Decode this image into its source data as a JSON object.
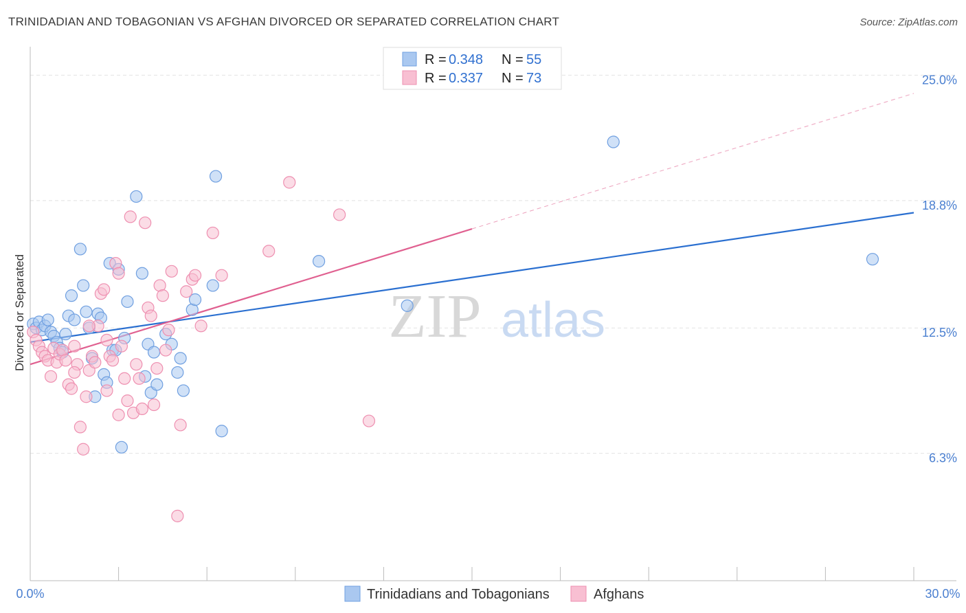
{
  "title": "TRINIDADIAN AND TOBAGONIAN VS AFGHAN DIVORCED OR SEPARATED CORRELATION CHART",
  "source": "Source: ZipAtlas.com",
  "watermark": {
    "zip": "ZIP",
    "atlas": "atlas"
  },
  "chart_data": {
    "type": "scatter",
    "ylabel": "Divorced or Separated",
    "xlim": [
      0,
      30
    ],
    "ylim": [
      0,
      26
    ],
    "x_tick_labels": [
      "0.0%",
      "30.0%"
    ],
    "y_ticks": [
      6.3,
      12.5,
      18.8,
      25.0
    ],
    "y_tick_labels": [
      "6.3%",
      "12.5%",
      "18.8%",
      "25.0%"
    ],
    "grid": "horizontal dashed",
    "legend_placement": "top-center",
    "series": [
      {
        "name": "Trinidadians and Tobagonians",
        "color": "#6f9fe0",
        "fill": "#aac8f0",
        "line_color": "#2a6fd0",
        "R": "0.348",
        "N": "55",
        "r_label": "R =",
        "n_label": "N =",
        "trend": {
          "x": [
            0,
            30
          ],
          "y": [
            11.8,
            18.2
          ]
        },
        "points": [
          [
            0.1,
            12.7
          ],
          [
            0.2,
            12.5
          ],
          [
            0.3,
            12.8
          ],
          [
            0.4,
            12.4
          ],
          [
            0.5,
            12.6
          ],
          [
            0.6,
            12.9
          ],
          [
            0.7,
            12.3
          ],
          [
            0.8,
            12.1
          ],
          [
            0.9,
            11.8
          ],
          [
            1.0,
            11.5
          ],
          [
            1.1,
            11.3
          ],
          [
            1.2,
            12.2
          ],
          [
            1.3,
            13.1
          ],
          [
            1.4,
            14.1
          ],
          [
            1.5,
            12.9
          ],
          [
            1.7,
            16.4
          ],
          [
            1.8,
            14.6
          ],
          [
            1.9,
            13.3
          ],
          [
            2.0,
            12.5
          ],
          [
            2.1,
            11.0
          ],
          [
            2.2,
            9.1
          ],
          [
            2.3,
            13.2
          ],
          [
            2.4,
            13.0
          ],
          [
            2.5,
            10.2
          ],
          [
            2.6,
            9.8
          ],
          [
            2.7,
            15.7
          ],
          [
            2.8,
            11.4
          ],
          [
            2.9,
            11.4
          ],
          [
            3.0,
            15.4
          ],
          [
            3.1,
            6.6
          ],
          [
            3.2,
            12.0
          ],
          [
            3.3,
            13.8
          ],
          [
            3.6,
            19.0
          ],
          [
            3.8,
            15.2
          ],
          [
            3.9,
            10.1
          ],
          [
            4.0,
            11.7
          ],
          [
            4.1,
            9.3
          ],
          [
            4.2,
            11.3
          ],
          [
            4.3,
            9.7
          ],
          [
            4.6,
            12.2
          ],
          [
            4.8,
            11.7
          ],
          [
            5.0,
            10.3
          ],
          [
            5.1,
            11.0
          ],
          [
            5.2,
            9.4
          ],
          [
            5.5,
            13.4
          ],
          [
            5.6,
            13.9
          ],
          [
            6.2,
            14.6
          ],
          [
            6.3,
            20.0
          ],
          [
            6.5,
            7.4
          ],
          [
            9.8,
            15.8
          ],
          [
            12.8,
            13.6
          ],
          [
            19.8,
            21.7
          ],
          [
            28.6,
            15.9
          ]
        ]
      },
      {
        "name": "Afghans",
        "color": "#ee8fb0",
        "fill": "#f8bfd2",
        "line_color": "#e06090",
        "R": "0.337",
        "N": "73",
        "r_label": "R =",
        "n_label": "N =",
        "trend": {
          "x": [
            0,
            15
          ],
          "y": [
            10.7,
            17.4
          ]
        },
        "trend_ext": {
          "x": [
            15,
            30
          ],
          "y": [
            17.4,
            24.1
          ]
        },
        "points": [
          [
            0.1,
            12.3
          ],
          [
            0.2,
            11.9
          ],
          [
            0.3,
            11.6
          ],
          [
            0.4,
            11.3
          ],
          [
            0.5,
            11.1
          ],
          [
            0.6,
            10.9
          ],
          [
            0.7,
            10.1
          ],
          [
            0.8,
            11.5
          ],
          [
            0.9,
            10.8
          ],
          [
            1.0,
            11.2
          ],
          [
            1.1,
            11.4
          ],
          [
            1.2,
            10.9
          ],
          [
            1.3,
            9.7
          ],
          [
            1.4,
            9.5
          ],
          [
            1.5,
            11.6
          ],
          [
            1.6,
            10.7
          ],
          [
            1.7,
            7.6
          ],
          [
            1.8,
            6.5
          ],
          [
            1.9,
            9.1
          ],
          [
            2.0,
            10.4
          ],
          [
            2.1,
            11.1
          ],
          [
            2.2,
            10.8
          ],
          [
            2.3,
            12.6
          ],
          [
            2.4,
            14.2
          ],
          [
            2.5,
            14.4
          ],
          [
            2.6,
            11.9
          ],
          [
            2.7,
            11.1
          ],
          [
            2.8,
            10.9
          ],
          [
            2.9,
            15.7
          ],
          [
            3.0,
            15.2
          ],
          [
            3.1,
            11.6
          ],
          [
            3.2,
            10.0
          ],
          [
            3.3,
            8.9
          ],
          [
            3.4,
            18.0
          ],
          [
            3.5,
            8.3
          ],
          [
            3.6,
            10.7
          ],
          [
            3.7,
            10.0
          ],
          [
            3.8,
            8.5
          ],
          [
            3.9,
            17.7
          ],
          [
            4.0,
            13.5
          ],
          [
            4.1,
            13.1
          ],
          [
            4.2,
            8.7
          ],
          [
            4.3,
            10.5
          ],
          [
            4.4,
            14.6
          ],
          [
            4.5,
            14.1
          ],
          [
            4.6,
            11.4
          ],
          [
            4.7,
            12.4
          ],
          [
            4.8,
            15.3
          ],
          [
            5.0,
            3.2
          ],
          [
            5.1,
            7.7
          ],
          [
            5.3,
            14.3
          ],
          [
            5.5,
            14.9
          ],
          [
            5.6,
            15.1
          ],
          [
            5.8,
            12.6
          ],
          [
            6.2,
            17.2
          ],
          [
            6.5,
            15.1
          ],
          [
            8.1,
            16.3
          ],
          [
            8.8,
            19.7
          ],
          [
            10.5,
            18.1
          ],
          [
            11.5,
            7.9
          ],
          [
            1.5,
            10.3
          ],
          [
            2.0,
            12.6
          ],
          [
            2.6,
            9.4
          ],
          [
            3.0,
            8.2
          ]
        ]
      }
    ]
  }
}
